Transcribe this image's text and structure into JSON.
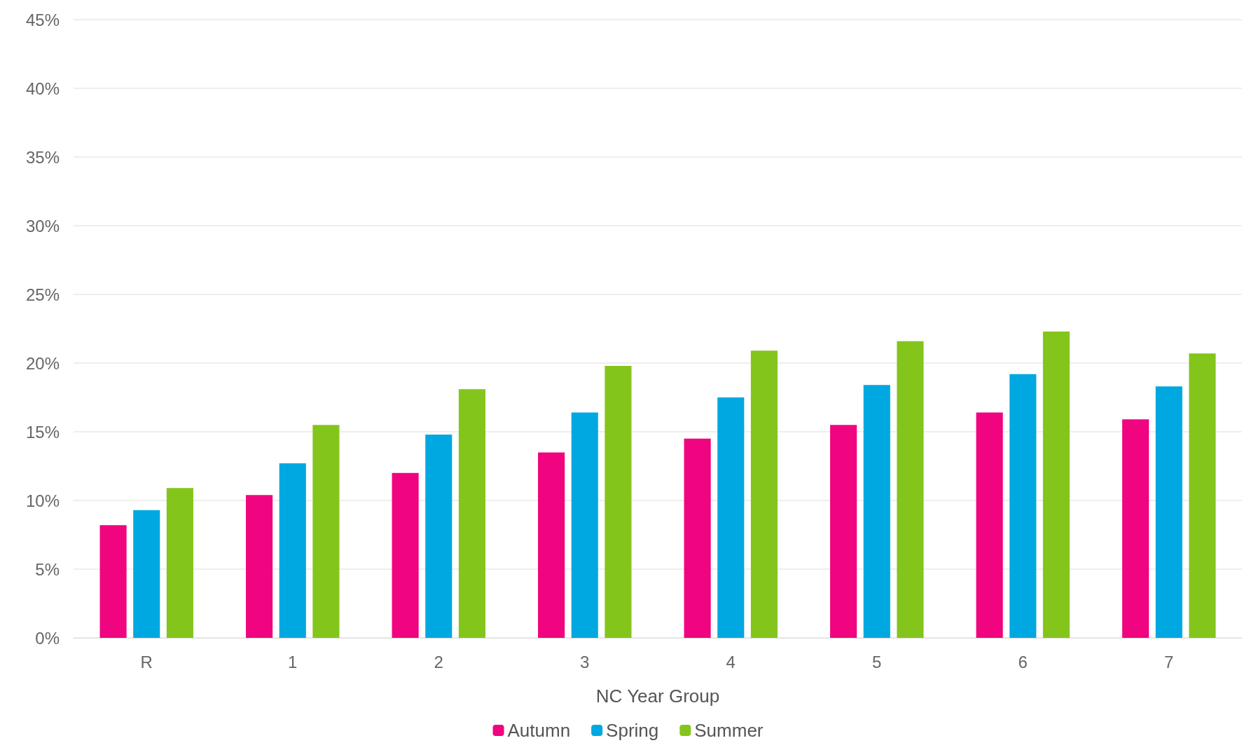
{
  "chart_data": {
    "type": "bar",
    "xlabel": "NC Year Group",
    "categories": [
      "R",
      "1",
      "2",
      "3",
      "4",
      "5",
      "6",
      "7"
    ],
    "series": [
      {
        "name": "Autumn",
        "color": "#f0047f",
        "values": [
          8.2,
          10.4,
          12.0,
          13.5,
          14.5,
          15.5,
          16.4,
          15.9
        ]
      },
      {
        "name": "Spring",
        "color": "#00a8e1",
        "values": [
          9.3,
          12.7,
          14.8,
          16.4,
          17.5,
          18.4,
          19.2,
          18.3
        ]
      },
      {
        "name": "Summer",
        "color": "#84c51b",
        "values": [
          10.9,
          15.5,
          18.1,
          19.8,
          20.9,
          21.6,
          22.3,
          20.7
        ]
      }
    ],
    "ylim": [
      0,
      45
    ],
    "yticks": [
      {
        "value": 0,
        "label": "0%"
      },
      {
        "value": 5,
        "label": "5%"
      },
      {
        "value": 10,
        "label": "10%"
      },
      {
        "value": 15,
        "label": "15%"
      },
      {
        "value": 20,
        "label": "20%"
      },
      {
        "value": 25,
        "label": "25%"
      },
      {
        "value": 30,
        "label": "30%"
      },
      {
        "value": 35,
        "label": "35%"
      },
      {
        "value": 40,
        "label": "40%"
      },
      {
        "value": 45,
        "label": "45%"
      }
    ],
    "grid": "y",
    "legend": "bottom"
  }
}
